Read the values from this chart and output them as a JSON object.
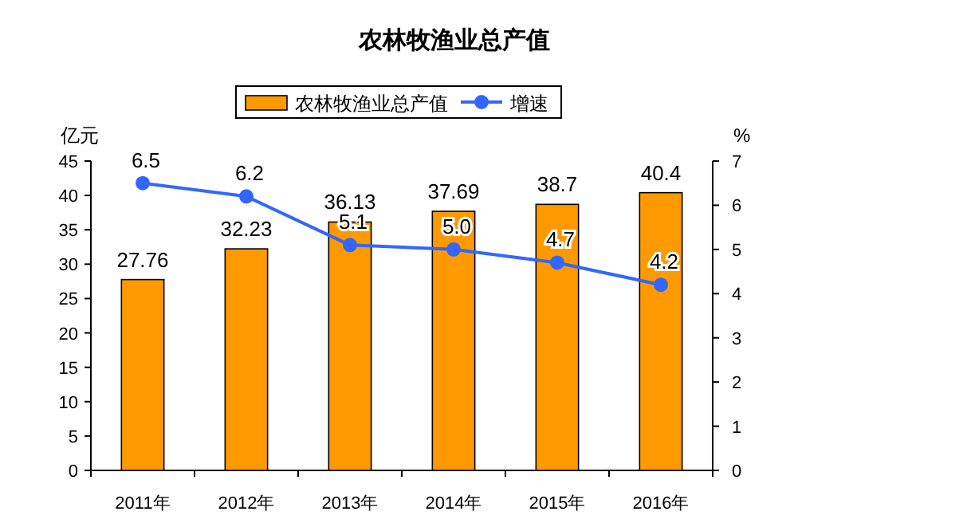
{
  "chart_data": {
    "type": "bar",
    "title": "农林牧渔业总产值",
    "ylabel": "亿元",
    "y2label": "%",
    "categories": [
      "2011年",
      "2012年",
      "2013年",
      "2014年",
      "2015年",
      "2016年"
    ],
    "series": [
      {
        "name": "农林牧渔业总产值",
        "color": "#ff9900",
        "values": [
          27.76,
          32.23,
          36.13,
          37.69,
          38.7,
          40.4
        ]
      },
      {
        "name": "增速",
        "type": "line",
        "axis": "y2",
        "color": "#3366ff",
        "values": [
          6.5,
          6.2,
          5.1,
          5.0,
          4.7,
          4.2
        ],
        "value_labels": [
          "6.5",
          "6.2",
          "5.1",
          "5.0",
          "4.7",
          "4.2"
        ]
      }
    ],
    "ylim": [
      0,
      45
    ],
    "yticks": [
      0,
      5,
      10,
      15,
      20,
      25,
      30,
      35,
      40,
      45
    ],
    "y2lim": [
      0,
      7
    ],
    "y2ticks": [
      0,
      1,
      2,
      3,
      4,
      5,
      6,
      7
    ],
    "data_labels": true,
    "legend": "top",
    "marker": "circle",
    "grid": false
  }
}
